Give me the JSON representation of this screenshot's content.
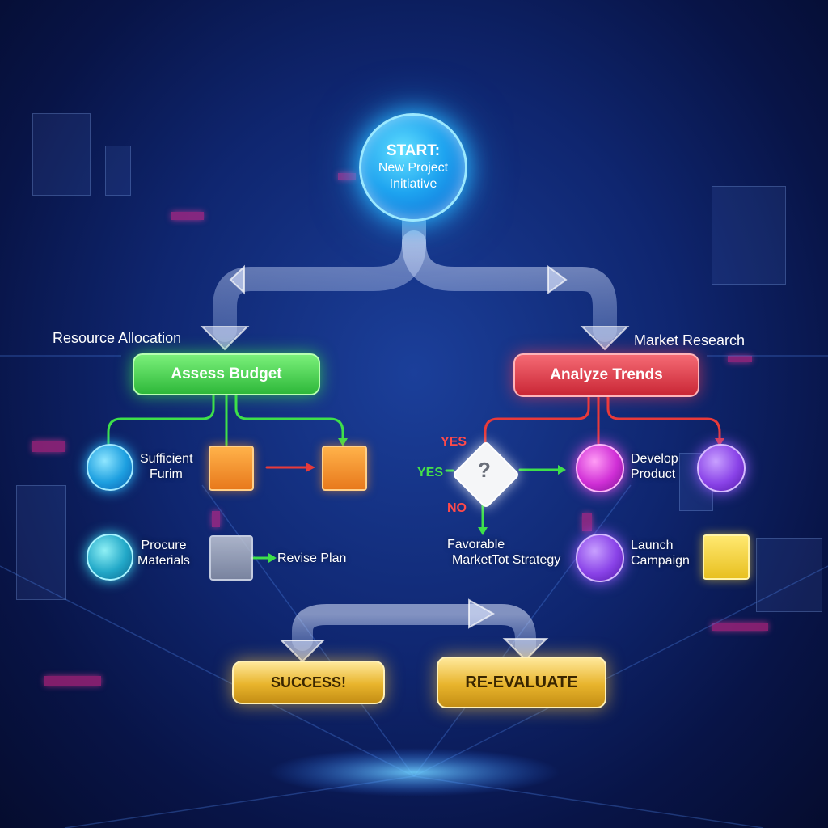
{
  "start": {
    "title": "START:",
    "subtitle_line1": "New Project",
    "subtitle_line2": "Initiative"
  },
  "left_branch": {
    "section_label": "Resource Allocation",
    "main_node": "Assess Budget",
    "node_sufficient_line1": "Sufficient",
    "node_sufficient_line2": "Furim",
    "node_procure_line1": "Procure",
    "node_procure_line2": "Materials",
    "node_revise": "Revise Plan"
  },
  "right_branch": {
    "section_label": "Market Research",
    "main_node": "Analyze Trends",
    "decision_symbol": "?",
    "yes_top": "YES",
    "yes_left": "YES",
    "no_label": "NO",
    "node_favorable_line1": "Favorable",
    "node_favorable_line2": "MarketTot Strategy",
    "node_develop_line1": "Develop",
    "node_develop_line2": "Product",
    "node_launch_line1": "Launch",
    "node_launch_line2": "Campaign"
  },
  "outcomes": {
    "success": "SUCCESS!",
    "reevaluate": "RE-EVALUATE"
  },
  "colors": {
    "background": "#0f2670",
    "start_node": "#1ea4f0",
    "green_node": "#2eb83a",
    "red_node": "#c92635",
    "gold_node": "#e8b42c",
    "green_connector": "#3ee04a",
    "red_connector": "#e83a3a"
  }
}
